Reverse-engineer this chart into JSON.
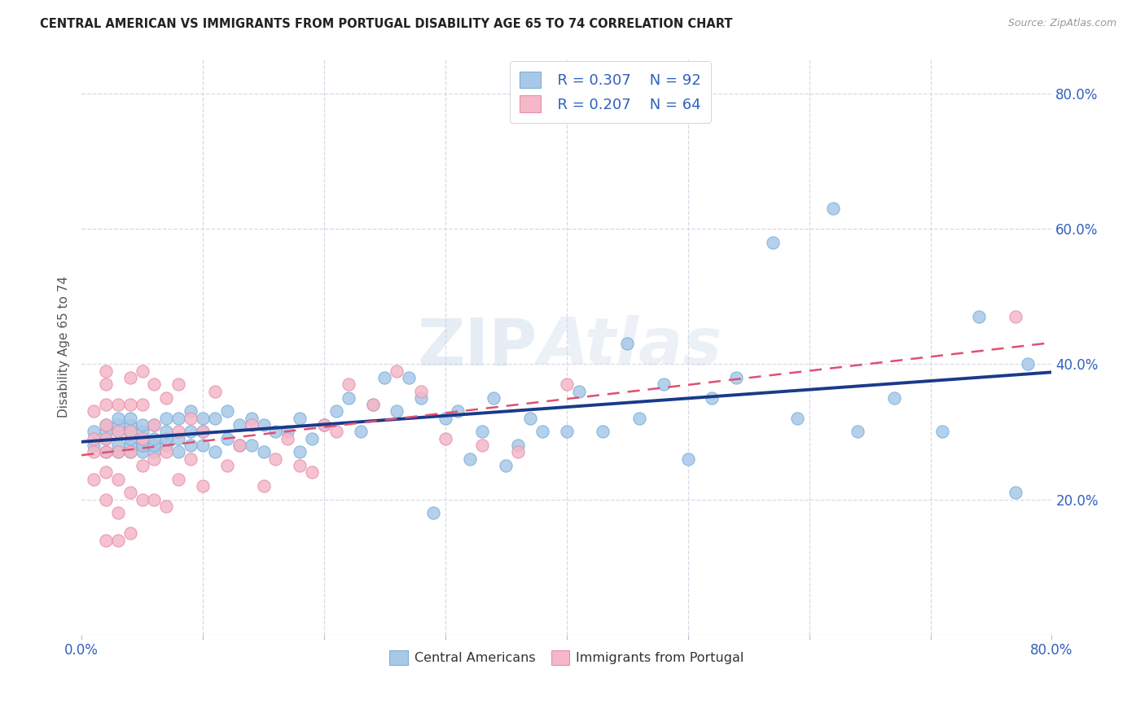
{
  "title": "CENTRAL AMERICAN VS IMMIGRANTS FROM PORTUGAL DISABILITY AGE 65 TO 74 CORRELATION CHART",
  "source": "Source: ZipAtlas.com",
  "ylabel": "Disability Age 65 to 74",
  "xlim": [
    0.0,
    0.8
  ],
  "ylim": [
    0.0,
    0.85
  ],
  "ytick_positions": [
    0.2,
    0.4,
    0.6,
    0.8
  ],
  "ytick_labels": [
    "20.0%",
    "40.0%",
    "60.0%",
    "80.0%"
  ],
  "legend_r1": "R = 0.307",
  "legend_n1": "N = 92",
  "legend_r2": "R = 0.207",
  "legend_n2": "N = 64",
  "color_blue": "#a8c8e8",
  "color_blue_edge": "#7ab0d8",
  "color_pink": "#f4b8c8",
  "color_pink_edge": "#e890a8",
  "color_blue_text": "#3060c0",
  "trend_blue_color": "#1a3a8a",
  "trend_pink_color": "#e05070",
  "background_color": "#ffffff",
  "grid_color": "#d8d8e8",
  "watermark_text": "ZIPAtlas",
  "blue_x": [
    0.01,
    0.01,
    0.02,
    0.02,
    0.02,
    0.02,
    0.03,
    0.03,
    0.03,
    0.03,
    0.03,
    0.04,
    0.04,
    0.04,
    0.04,
    0.04,
    0.04,
    0.05,
    0.05,
    0.05,
    0.05,
    0.05,
    0.05,
    0.06,
    0.06,
    0.06,
    0.06,
    0.07,
    0.07,
    0.07,
    0.07,
    0.08,
    0.08,
    0.08,
    0.09,
    0.09,
    0.09,
    0.1,
    0.1,
    0.1,
    0.11,
    0.11,
    0.12,
    0.12,
    0.13,
    0.13,
    0.14,
    0.14,
    0.15,
    0.15,
    0.16,
    0.17,
    0.18,
    0.18,
    0.19,
    0.2,
    0.21,
    0.22,
    0.23,
    0.24,
    0.25,
    0.26,
    0.27,
    0.28,
    0.29,
    0.3,
    0.31,
    0.32,
    0.33,
    0.34,
    0.35,
    0.36,
    0.37,
    0.38,
    0.4,
    0.41,
    0.43,
    0.45,
    0.46,
    0.48,
    0.5,
    0.52,
    0.54,
    0.57,
    0.59,
    0.62,
    0.64,
    0.67,
    0.71,
    0.74,
    0.77,
    0.78
  ],
  "blue_y": [
    0.28,
    0.3,
    0.27,
    0.29,
    0.3,
    0.31,
    0.27,
    0.28,
    0.3,
    0.31,
    0.32,
    0.27,
    0.28,
    0.29,
    0.3,
    0.31,
    0.32,
    0.27,
    0.28,
    0.28,
    0.29,
    0.3,
    0.31,
    0.27,
    0.28,
    0.29,
    0.31,
    0.28,
    0.29,
    0.3,
    0.32,
    0.27,
    0.29,
    0.32,
    0.28,
    0.3,
    0.33,
    0.28,
    0.3,
    0.32,
    0.27,
    0.32,
    0.29,
    0.33,
    0.28,
    0.31,
    0.28,
    0.32,
    0.27,
    0.31,
    0.3,
    0.3,
    0.27,
    0.32,
    0.29,
    0.31,
    0.33,
    0.35,
    0.3,
    0.34,
    0.38,
    0.33,
    0.38,
    0.35,
    0.18,
    0.32,
    0.33,
    0.26,
    0.3,
    0.35,
    0.25,
    0.28,
    0.32,
    0.3,
    0.3,
    0.36,
    0.3,
    0.43,
    0.32,
    0.37,
    0.26,
    0.35,
    0.38,
    0.58,
    0.32,
    0.63,
    0.3,
    0.35,
    0.3,
    0.47,
    0.21,
    0.4
  ],
  "pink_x": [
    0.01,
    0.01,
    0.01,
    0.01,
    0.02,
    0.02,
    0.02,
    0.02,
    0.02,
    0.02,
    0.02,
    0.02,
    0.02,
    0.03,
    0.03,
    0.03,
    0.03,
    0.03,
    0.03,
    0.04,
    0.04,
    0.04,
    0.04,
    0.04,
    0.04,
    0.05,
    0.05,
    0.05,
    0.05,
    0.05,
    0.06,
    0.06,
    0.06,
    0.06,
    0.07,
    0.07,
    0.07,
    0.08,
    0.08,
    0.08,
    0.09,
    0.09,
    0.1,
    0.1,
    0.11,
    0.12,
    0.13,
    0.14,
    0.15,
    0.16,
    0.17,
    0.18,
    0.19,
    0.2,
    0.21,
    0.22,
    0.24,
    0.26,
    0.28,
    0.3,
    0.33,
    0.36,
    0.4,
    0.77
  ],
  "pink_y": [
    0.23,
    0.27,
    0.29,
    0.33,
    0.14,
    0.2,
    0.24,
    0.27,
    0.29,
    0.31,
    0.34,
    0.37,
    0.39,
    0.14,
    0.18,
    0.23,
    0.27,
    0.3,
    0.34,
    0.15,
    0.21,
    0.27,
    0.3,
    0.34,
    0.38,
    0.2,
    0.25,
    0.29,
    0.34,
    0.39,
    0.2,
    0.26,
    0.31,
    0.37,
    0.19,
    0.27,
    0.35,
    0.23,
    0.3,
    0.37,
    0.26,
    0.32,
    0.22,
    0.3,
    0.36,
    0.25,
    0.28,
    0.31,
    0.22,
    0.26,
    0.29,
    0.25,
    0.24,
    0.31,
    0.3,
    0.37,
    0.34,
    0.39,
    0.36,
    0.29,
    0.28,
    0.27,
    0.37,
    0.47
  ]
}
